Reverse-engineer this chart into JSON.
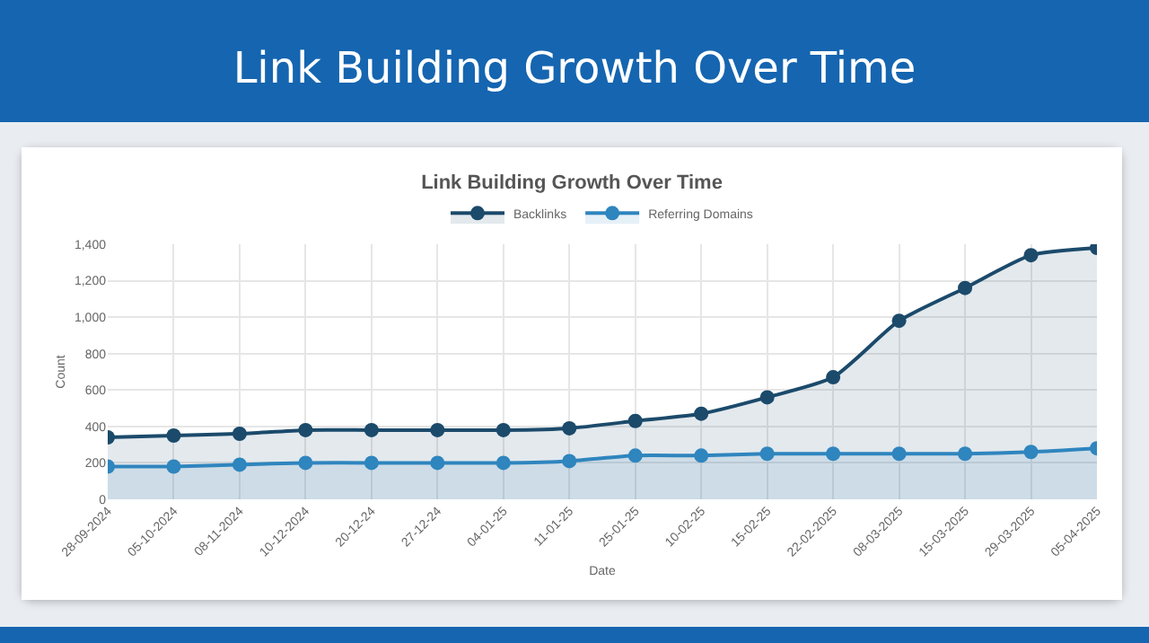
{
  "chart_data": {
    "type": "area",
    "title": "Link Building Growth Over Time",
    "subtitle": "Link Building Growth Over Time",
    "xlabel": "Date",
    "ylabel": "Count",
    "categories": [
      "28-09-2024",
      "05-10-2024",
      "08-11-2024",
      "10-12-2024",
      "20-12-24",
      "27-12-24",
      "04-01-25",
      "11-01-25",
      "25-01-25",
      "10-02-25",
      "15-02-25",
      "22-02-2025",
      "08-03-2025",
      "15-03-2025",
      "29-03-2025",
      "05-04-2025"
    ],
    "series": [
      {
        "name": "Backlinks",
        "color": "#1b4a6b",
        "values": [
          340,
          350,
          360,
          380,
          380,
          380,
          380,
          390,
          430,
          470,
          560,
          670,
          980,
          1160,
          1340,
          1380
        ]
      },
      {
        "name": "Referring Domains",
        "color": "#2f85be",
        "values": [
          180,
          180,
          190,
          200,
          200,
          200,
          200,
          210,
          240,
          240,
          250,
          250,
          250,
          250,
          260,
          280
        ]
      }
    ],
    "ylim": [
      0,
      1400
    ],
    "yticks": [
      0,
      200,
      400,
      600,
      800,
      {
        "value": 1000,
        "label": "1,000"
      },
      {
        "value": 1200,
        "label": "1,200"
      },
      {
        "value": 1400,
        "label": "1,400"
      }
    ],
    "grid": true,
    "legend": "top",
    "marker": "circle"
  }
}
